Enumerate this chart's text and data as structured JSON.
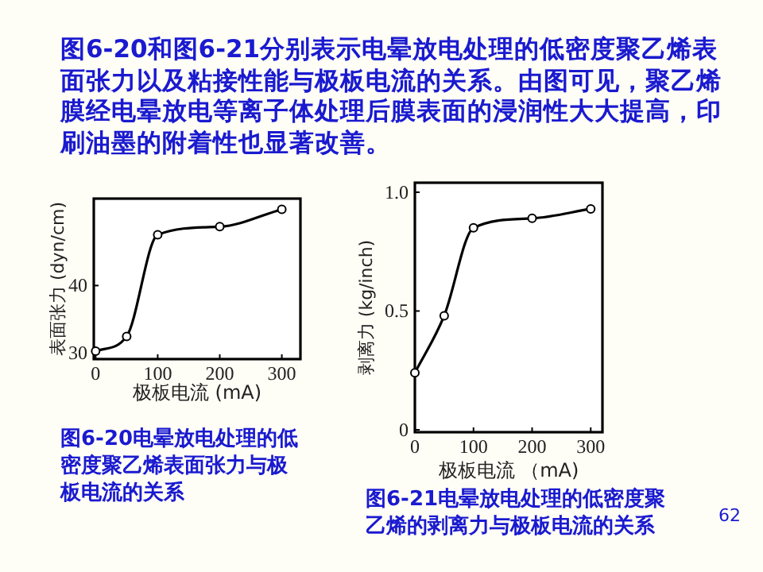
{
  "chart_data": [
    {
      "type": "other",
      "annotations": [
        "图6-20和图6-21分别表示电晕放电处理的低密度聚乙烯表面张力以及粘接性能与极板电流的关系。由图可见，聚乙烯膜经电晕放电等离子体处理后膜表面的浸润性大大提高，印刷油墨的附着性也显著改善。",
        "62"
      ]
    },
    {
      "type": "line",
      "xlabel": "极板电流 (mA)",
      "ylabel": "表面张力 (dyn/cm)",
      "annotations": [
        "图6-20电晕放电处理的低密度聚乙烯表面张力与极板电流的关系"
      ],
      "x": [
        0,
        50,
        100,
        200,
        300
      ],
      "xlim": [
        -3,
        330
      ],
      "xticks": [
        0,
        100,
        200,
        300
      ],
      "ylim": [
        29,
        53
      ],
      "yticks": [
        30,
        40
      ],
      "marker": "circle",
      "series": [
        {
          "color": "#000000",
          "values": [
            30.2,
            32.4,
            47.6,
            48.8,
            51.4
          ]
        }
      ]
    },
    {
      "type": "line",
      "xlabel": "极板电流 （mA)",
      "ylabel": "剥离力 (kg/inch)",
      "annotations": [
        "图6-21电晕放电处理的低密度聚乙烯的剥离力与极板电流的关系"
      ],
      "x": [
        0,
        50,
        100,
        200,
        300
      ],
      "xlim": [
        0,
        320
      ],
      "xticks": [
        0,
        100,
        200,
        300
      ],
      "ylim": [
        -0.01,
        1.04
      ],
      "yticks": [
        0,
        0.5,
        {
          "value": 1,
          "label": "1.0"
        }
      ],
      "marker": "circle",
      "series": [
        {
          "color": "#000000",
          "values": [
            0.24,
            0.48,
            0.85,
            0.89,
            0.93
          ]
        }
      ]
    }
  ]
}
